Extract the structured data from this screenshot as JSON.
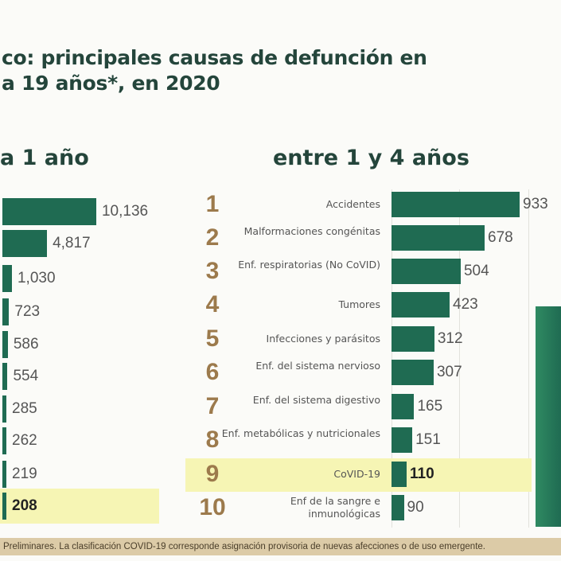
{
  "title_line1": "co: principales causas de defunción en",
  "title_line2": "a 19 años*, en 2020",
  "footer": "Preliminares. La clasificación COVID-19 corresponde asignación provisoria de nuevas afecciones o de uso emergente.",
  "chart_data": [
    {
      "type": "bar",
      "title": "a 1 año",
      "orientation": "horizontal",
      "values": [
        10136,
        4817,
        1030,
        723,
        586,
        554,
        285,
        262,
        219,
        208
      ],
      "labels": [
        "10,136",
        "4,817",
        "1,030",
        "723",
        "586",
        "554",
        "285",
        "262",
        "219",
        "208"
      ],
      "highlight_index": 9
    },
    {
      "type": "bar",
      "title": "entre 1 y 4 años",
      "orientation": "horizontal",
      "ranks": [
        "1",
        "2",
        "3",
        "4",
        "5",
        "6",
        "7",
        "8",
        "9",
        "10"
      ],
      "categories": [
        "Accidentes",
        "Malformaciones congénitas",
        "Enf. respiratorias (No CoVID)",
        "Tumores",
        "Infecciones y parásitos",
        "Enf. del sistema nervioso",
        "Enf. del sistema digestivo",
        "Enf. metabólicas y nutricionales",
        "CoVID-19",
        "Enf de la sangre e inmunológicas"
      ],
      "values": [
        933,
        678,
        504,
        423,
        312,
        307,
        165,
        151,
        110,
        90
      ],
      "labels": [
        "933",
        "678",
        "504",
        "423",
        "312",
        "307",
        "165",
        "151",
        "110",
        "90"
      ],
      "highlight_index": 8
    }
  ],
  "colors": {
    "bar": "#1f6b52",
    "highlight": "#f6f5b4",
    "rank": "#9c7a4c",
    "title": "#24453b"
  }
}
